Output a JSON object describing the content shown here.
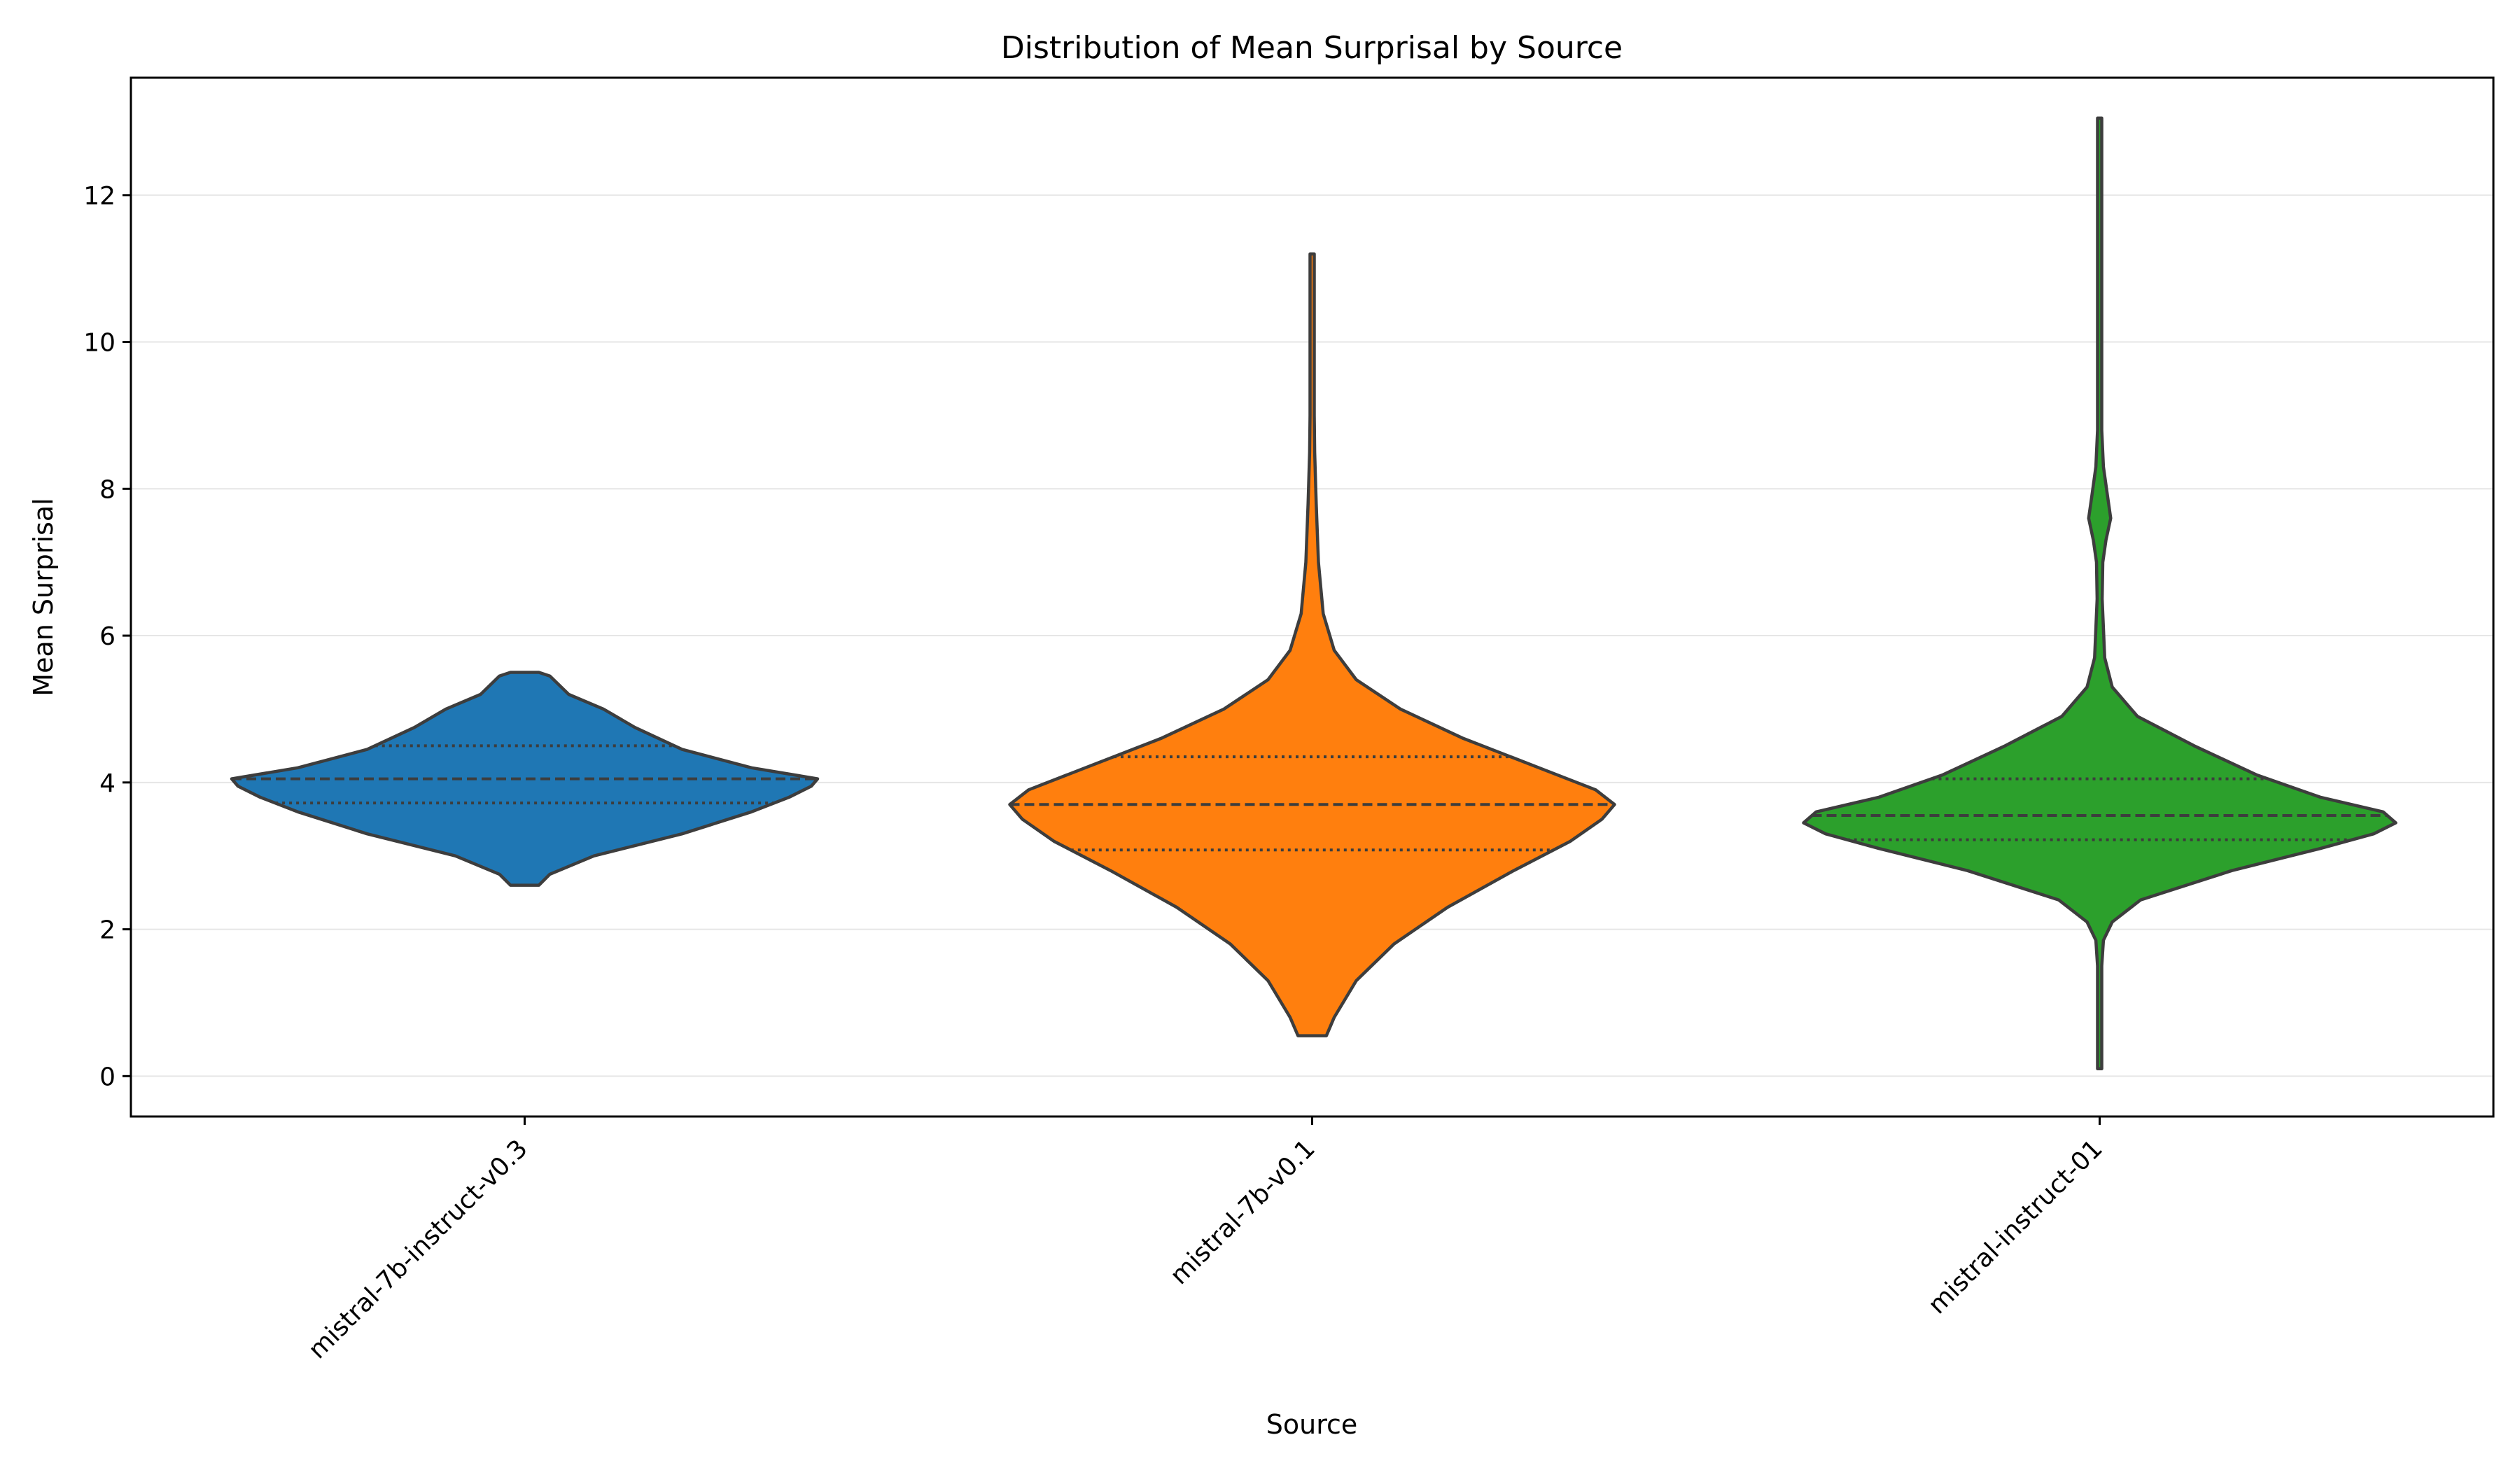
{
  "chart_data": {
    "type": "violin",
    "title": "Distribution of Mean Surprisal by Source",
    "xlabel": "Source",
    "ylabel": "Mean Surprisal",
    "ylim": [
      -0.55,
      13.6
    ],
    "yticks": [
      0,
      2,
      4,
      6,
      8,
      10,
      12
    ],
    "grid": "horizontal",
    "categories": [
      "mistral-7b-instruct-v0.3",
      "mistral-7b-v0.1",
      "mistral-instruct-01"
    ],
    "violins": [
      {
        "category": "mistral-7b-instruct-v0.3",
        "color": "#1f77b4",
        "min": 2.6,
        "max": 5.5,
        "q1": 3.72,
        "median": 4.05,
        "q3": 4.5,
        "profile": [
          [
            2.6,
            0.045
          ],
          [
            2.75,
            0.08
          ],
          [
            3.0,
            0.22
          ],
          [
            3.3,
            0.5
          ],
          [
            3.6,
            0.72
          ],
          [
            3.8,
            0.84
          ],
          [
            3.95,
            0.91
          ],
          [
            4.05,
            0.93
          ],
          [
            4.2,
            0.72
          ],
          [
            4.45,
            0.5
          ],
          [
            4.75,
            0.35
          ],
          [
            5.0,
            0.25
          ],
          [
            5.2,
            0.14
          ],
          [
            5.45,
            0.08
          ],
          [
            5.5,
            0.045
          ]
        ]
      },
      {
        "category": "mistral-7b-v0.1",
        "color": "#ff7f0e",
        "min": 0.55,
        "max": 11.2,
        "q1": 3.08,
        "median": 3.7,
        "q3": 4.35,
        "profile": [
          [
            0.55,
            0.045
          ],
          [
            0.8,
            0.07
          ],
          [
            1.3,
            0.14
          ],
          [
            1.8,
            0.26
          ],
          [
            2.3,
            0.43
          ],
          [
            2.8,
            0.64
          ],
          [
            3.2,
            0.82
          ],
          [
            3.5,
            0.92
          ],
          [
            3.7,
            0.96
          ],
          [
            3.9,
            0.9
          ],
          [
            4.2,
            0.72
          ],
          [
            4.6,
            0.48
          ],
          [
            5.0,
            0.28
          ],
          [
            5.4,
            0.14
          ],
          [
            5.8,
            0.07
          ],
          [
            6.3,
            0.035
          ],
          [
            7.0,
            0.02
          ],
          [
            7.8,
            0.013
          ],
          [
            8.5,
            0.008
          ],
          [
            9.0,
            0.004
          ],
          [
            10.0,
            0.003
          ],
          [
            11.0,
            0.003
          ],
          [
            11.2,
            0.006
          ]
        ]
      },
      {
        "category": "mistral-instruct-01",
        "color": "#2ca02c",
        "min": 0.1,
        "max": 13.05,
        "q1": 3.22,
        "median": 3.55,
        "q3": 4.05,
        "profile": [
          [
            0.1,
            0.005
          ],
          [
            0.8,
            0.004
          ],
          [
            1.5,
            0.005
          ],
          [
            1.85,
            0.012
          ],
          [
            2.1,
            0.04
          ],
          [
            2.4,
            0.13
          ],
          [
            2.8,
            0.42
          ],
          [
            3.1,
            0.7
          ],
          [
            3.3,
            0.87
          ],
          [
            3.45,
            0.94
          ],
          [
            3.6,
            0.9
          ],
          [
            3.8,
            0.7
          ],
          [
            4.1,
            0.5
          ],
          [
            4.5,
            0.3
          ],
          [
            4.9,
            0.12
          ],
          [
            5.3,
            0.04
          ],
          [
            5.7,
            0.016
          ],
          [
            6.1,
            0.012
          ],
          [
            6.5,
            0.008
          ],
          [
            7.0,
            0.01
          ],
          [
            7.3,
            0.02
          ],
          [
            7.6,
            0.035
          ],
          [
            7.9,
            0.025
          ],
          [
            8.3,
            0.012
          ],
          [
            8.8,
            0.004
          ],
          [
            10.0,
            0.002
          ],
          [
            12.0,
            0.002
          ],
          [
            13.0,
            0.004
          ],
          [
            13.05,
            0.004
          ]
        ]
      }
    ]
  }
}
